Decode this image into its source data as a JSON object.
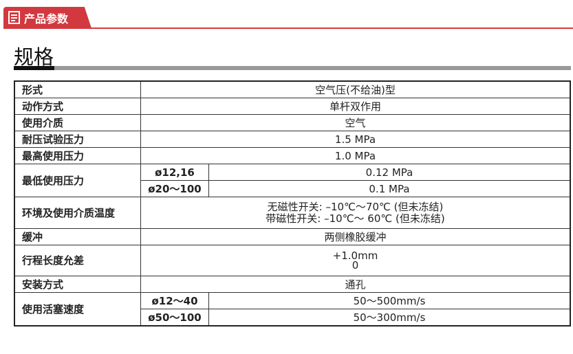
{
  "header": {
    "tab_label": "产品参数",
    "icon": "document-icon",
    "accent": "#d2393f"
  },
  "section_title": "规格",
  "rows": [
    {
      "label": "形式",
      "value": "空气压(不给油)型"
    },
    {
      "label": "动作方式",
      "value": "单杆双作用"
    },
    {
      "label": "使用介质",
      "value": "空气"
    },
    {
      "label": "耐压试验压力",
      "value": "1.5 MPa"
    },
    {
      "label": "最高使用压力",
      "value": "1.0 MPa"
    },
    {
      "label": "最低使用压力",
      "sub": [
        {
          "size": "ø12,16",
          "value": "0.12 MPa"
        },
        {
          "size": "ø20～100",
          "value": "0.1 MPa"
        }
      ]
    },
    {
      "label": "环境及使用介质温度",
      "lines": [
        "无磁性开关: –10℃～70℃ (但未冻结)",
        "带磁性开关: –10℃～ 60℃ (但未冻结)"
      ]
    },
    {
      "label": "缓冲",
      "value": "两侧橡胶缓冲"
    },
    {
      "label": "行程长度允差",
      "lines": [
        "+1.0mm",
        "0"
      ]
    },
    {
      "label": "安装方式",
      "value": "通孔"
    },
    {
      "label": "使用活塞速度",
      "sub": [
        {
          "size": "ø12～40",
          "value": "50～500mm/s"
        },
        {
          "size": "ø50～100",
          "value": "50～300mm/s"
        }
      ]
    }
  ]
}
